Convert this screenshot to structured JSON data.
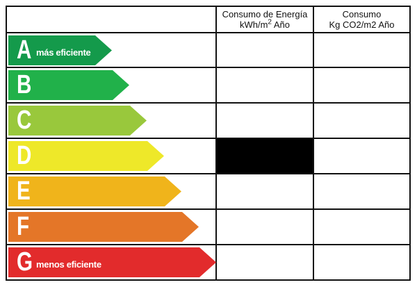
{
  "header": {
    "energy_line1": "Consumo de Energía",
    "energy_line2": "kWh/m",
    "energy_sup": "2",
    "energy_line2_end": " Año",
    "co2_line1": "Consumo",
    "co2_line2": "Kg CO2/m2 Año"
  },
  "ratings": [
    {
      "letter": "A",
      "sublabel": "más eficiente",
      "color": "#149a4b"
    },
    {
      "letter": "B",
      "sublabel": "",
      "color": "#21b14a"
    },
    {
      "letter": "C",
      "sublabel": "",
      "color": "#99c83c"
    },
    {
      "letter": "D",
      "sublabel": "",
      "color": "#eee829"
    },
    {
      "letter": "E",
      "sublabel": "",
      "color": "#f0b41b"
    },
    {
      "letter": "F",
      "sublabel": "",
      "color": "#e47628"
    },
    {
      "letter": "G",
      "sublabel": "menos eficiente",
      "color": "#e22b2c"
    }
  ],
  "energy_marker_row": "D"
}
